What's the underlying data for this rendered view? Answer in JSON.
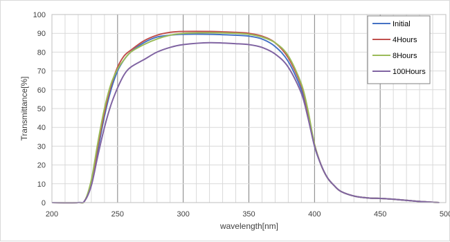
{
  "chart_data": {
    "type": "line",
    "title": "",
    "xlabel": "wavelength[nm]",
    "ylabel": "Transmittance[%]",
    "xlim": [
      200,
      500
    ],
    "ylim": [
      0,
      100
    ],
    "x_ticks": [
      200,
      250,
      300,
      350,
      400,
      450,
      500
    ],
    "y_ticks": [
      0,
      10,
      20,
      30,
      40,
      50,
      60,
      70,
      80,
      90,
      100
    ],
    "grid": true,
    "legend_position": "top-right",
    "x": [
      200,
      220,
      225,
      230,
      235,
      240,
      245,
      250,
      255,
      260,
      270,
      280,
      290,
      300,
      320,
      340,
      350,
      360,
      370,
      380,
      390,
      395,
      400,
      405,
      410,
      415,
      420,
      430,
      440,
      450,
      460,
      470,
      480,
      490,
      495
    ],
    "series": [
      {
        "name": "Initial",
        "color": "#4472c4",
        "values": [
          0,
          0,
          1,
          10,
          28,
          46,
          60,
          70,
          76,
          80,
          85,
          88,
          89,
          89.5,
          89.5,
          89,
          88.5,
          87,
          83,
          75,
          60,
          47,
          30,
          20,
          13,
          9,
          6,
          3.5,
          2.5,
          2.2,
          1.8,
          1.2,
          0.6,
          0.2,
          0
        ]
      },
      {
        "name": "4Hours",
        "color": "#c0504d",
        "values": [
          0,
          0,
          1,
          11,
          30,
          48,
          62,
          72,
          78,
          81,
          86,
          89,
          90.5,
          91,
          91,
          90.5,
          90,
          88.5,
          85,
          77,
          62,
          48,
          31,
          20,
          13,
          9,
          6,
          3.5,
          2.5,
          2.2,
          1.8,
          1.2,
          0.6,
          0.2,
          0
        ]
      },
      {
        "name": "8Hours",
        "color": "#9bbb59",
        "values": [
          0,
          0,
          1,
          12,
          32,
          50,
          63,
          71,
          76,
          80,
          84,
          87,
          89,
          90,
          90.3,
          90,
          89.5,
          88,
          85,
          78,
          63,
          49,
          31,
          20,
          13,
          9,
          6,
          3.5,
          2.5,
          2.2,
          1.8,
          1.2,
          0.6,
          0.2,
          0
        ]
      },
      {
        "name": "100Hours",
        "color": "#8064a2",
        "values": [
          0,
          0,
          1,
          9,
          25,
          40,
          52,
          61,
          68,
          72,
          76,
          80,
          82.5,
          84,
          85,
          84.5,
          84,
          82.5,
          79,
          72,
          58,
          45,
          30,
          20,
          13,
          9,
          6,
          3.5,
          2.5,
          2.2,
          1.8,
          1.2,
          0.6,
          0.2,
          0
        ]
      }
    ]
  }
}
